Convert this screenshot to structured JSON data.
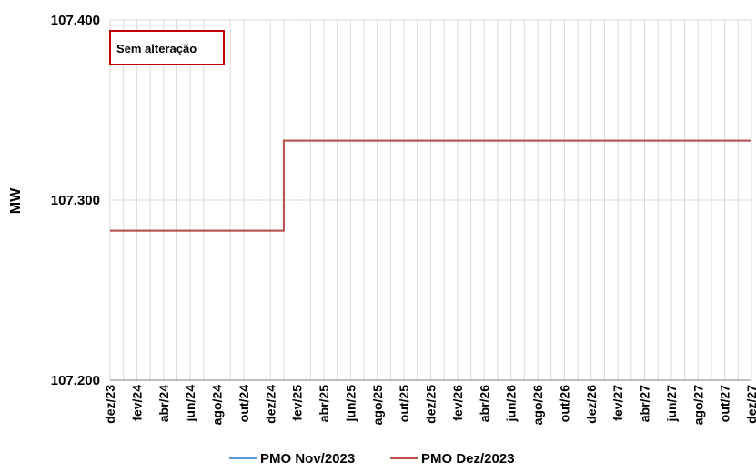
{
  "chart_data": {
    "type": "line",
    "ylabel": "MW",
    "xlabel": "",
    "ylim": [
      107200,
      107400
    ],
    "y_ticks": [
      107200,
      107300,
      107400
    ],
    "y_tick_labels": [
      "107.200",
      "107.300",
      "107.400"
    ],
    "x_range": [
      "2023-12",
      "2027-12"
    ],
    "x_tick_labels": [
      "dez/23",
      "fev/24",
      "abr/24",
      "jun/24",
      "ago/24",
      "out/24",
      "dez/24",
      "fev/25",
      "abr/25",
      "jun/25",
      "ago/25",
      "out/25",
      "dez/25",
      "fev/26",
      "abr/26",
      "jun/26",
      "ago/26",
      "out/26",
      "dez/26",
      "fev/27",
      "abr/27",
      "jun/27",
      "ago/27",
      "out/27",
      "dez/27"
    ],
    "grid": true,
    "legend_position": "bottom",
    "annotation": "Sem alteração",
    "series": [
      {
        "name": "PMO Nov/2023",
        "color": "#5b9bd5",
        "step": true,
        "points": [
          [
            "2023-12",
            107283
          ],
          [
            "2025-01",
            107333
          ],
          [
            "2027-12",
            107333
          ]
        ]
      },
      {
        "name": "PMO Dez/2023",
        "color": "#c0504d",
        "step": true,
        "points": [
          [
            "2023-12",
            107283
          ],
          [
            "2025-01",
            107333
          ],
          [
            "2027-12",
            107333
          ]
        ]
      }
    ]
  }
}
